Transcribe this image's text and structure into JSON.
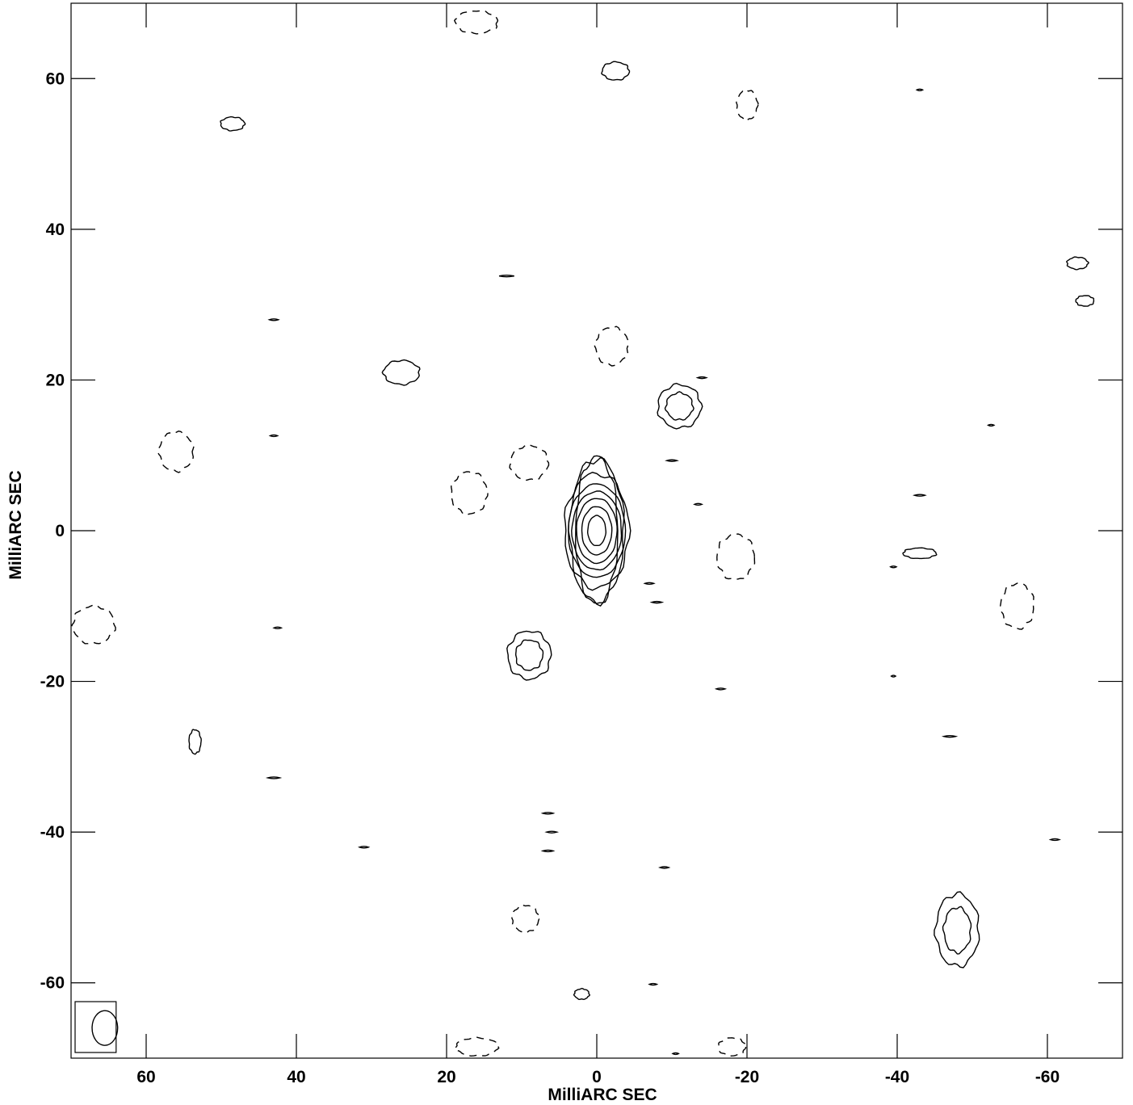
{
  "chart_data": {
    "type": "contour",
    "xlabel": "MilliARC SEC",
    "ylabel": "MilliARC SEC",
    "xlim": [
      70,
      -70
    ],
    "ylim": [
      -70,
      70
    ],
    "x_ticks": [
      60,
      40,
      20,
      0,
      -20,
      -40,
      -60
    ],
    "y_ticks": [
      60,
      40,
      20,
      0,
      -20,
      -40,
      -60
    ],
    "x_tick_labels": [
      "60",
      "40",
      "20",
      "0",
      "-20",
      "-40",
      "-60"
    ],
    "y_tick_labels": [
      "60",
      "40",
      "20",
      "0",
      "-20",
      "-40",
      "-60"
    ],
    "grid": false,
    "core": {
      "x": 0,
      "y": 0,
      "levels": [
        {
          "rx": 1.2,
          "ry": 2.0
        },
        {
          "rx": 2.0,
          "ry": 3.2
        },
        {
          "rx": 2.7,
          "ry": 4.3
        },
        {
          "rx": 3.3,
          "ry": 5.2
        },
        {
          "rx": 3.8,
          "ry": 6.2
        },
        {
          "rx": 4.3,
          "ry": 7.6
        },
        {
          "rx": 3.6,
          "ry": 9.5
        },
        {
          "rx": 2.8,
          "ry": 9.8
        }
      ]
    },
    "features": [
      {
        "x": -11,
        "y": 16.5,
        "rx": 1.8,
        "ry": 1.8,
        "levels": 2,
        "kind": "solid"
      },
      {
        "x": 9,
        "y": -16.5,
        "rx": 1.8,
        "ry": 2.0,
        "levels": 2,
        "kind": "solid"
      },
      {
        "x": -48,
        "y": -53,
        "rx": 1.8,
        "ry": 3.0,
        "levels": 2,
        "kind": "solid"
      },
      {
        "x": -2.5,
        "y": 61,
        "rx": 1.8,
        "ry": 1.2,
        "levels": 1,
        "kind": "solid"
      },
      {
        "x": 48.5,
        "y": 54,
        "rx": 1.6,
        "ry": 0.9,
        "levels": 1,
        "kind": "solid"
      },
      {
        "x": 26,
        "y": 21,
        "rx": 2.4,
        "ry": 1.6,
        "levels": 1,
        "kind": "solid"
      },
      {
        "x": -43,
        "y": -3,
        "rx": 2.2,
        "ry": 0.7,
        "levels": 1,
        "kind": "solid"
      },
      {
        "x": -64,
        "y": 35.5,
        "rx": 1.4,
        "ry": 0.8,
        "levels": 1,
        "kind": "solid"
      },
      {
        "x": -65,
        "y": 30.5,
        "rx": 1.2,
        "ry": 0.7,
        "levels": 1,
        "kind": "solid"
      },
      {
        "x": 2,
        "y": -61.5,
        "rx": 1.0,
        "ry": 0.7,
        "levels": 1,
        "kind": "solid"
      },
      {
        "x": 53.5,
        "y": -28,
        "rx": 0.8,
        "ry": 1.6,
        "levels": 1,
        "kind": "solid"
      },
      {
        "x": -2,
        "y": 24.5,
        "rx": 2.2,
        "ry": 2.5,
        "levels": 1,
        "kind": "dashed"
      },
      {
        "x": 9,
        "y": 9,
        "rx": 2.5,
        "ry": 2.3,
        "levels": 1,
        "kind": "dashed"
      },
      {
        "x": 17,
        "y": 5,
        "rx": 2.4,
        "ry": 2.8,
        "levels": 1,
        "kind": "dashed"
      },
      {
        "x": 56,
        "y": 10.5,
        "rx": 2.3,
        "ry": 2.6,
        "levels": 1,
        "kind": "dashed"
      },
      {
        "x": -18.5,
        "y": -3.5,
        "rx": 2.5,
        "ry": 3.0,
        "levels": 1,
        "kind": "dashed"
      },
      {
        "x": -20,
        "y": 56.5,
        "rx": 1.4,
        "ry": 2.0,
        "levels": 1,
        "kind": "dashed"
      },
      {
        "x": -56,
        "y": -10,
        "rx": 2.2,
        "ry": 3.0,
        "levels": 1,
        "kind": "dashed"
      },
      {
        "x": 67,
        "y": -12.5,
        "rx": 2.8,
        "ry": 2.5,
        "levels": 1,
        "kind": "dashed"
      },
      {
        "x": 9.5,
        "y": -51.5,
        "rx": 1.8,
        "ry": 1.8,
        "levels": 1,
        "kind": "dashed"
      },
      {
        "x": 16,
        "y": 67.5,
        "rx": 2.8,
        "ry": 1.5,
        "levels": 1,
        "kind": "dashed"
      },
      {
        "x": 16,
        "y": -68.5,
        "rx": 2.8,
        "ry": 1.2,
        "levels": 1,
        "kind": "dashed"
      },
      {
        "x": -18,
        "y": -68.5,
        "rx": 1.8,
        "ry": 1.2,
        "levels": 1,
        "kind": "dashed"
      }
    ],
    "dashes": [
      {
        "x": 12,
        "y": 33.8,
        "w": 1.0
      },
      {
        "x": 43,
        "y": 12.6,
        "w": 0.5
      },
      {
        "x": 42.5,
        "y": -12.9,
        "w": 0.5
      },
      {
        "x": 43,
        "y": -32.8,
        "w": 0.8
      },
      {
        "x": -10,
        "y": 9.3,
        "w": 0.7
      },
      {
        "x": -13.5,
        "y": 3.5,
        "w": 0.5
      },
      {
        "x": -14,
        "y": 20.3,
        "w": 0.6
      },
      {
        "x": -43,
        "y": 58.5,
        "w": 0.4
      },
      {
        "x": -52.5,
        "y": 14,
        "w": 0.4
      },
      {
        "x": -43,
        "y": 4.7,
        "w": 0.7
      },
      {
        "x": -39.5,
        "y": -4.8,
        "w": 0.4
      },
      {
        "x": -16.5,
        "y": -21,
        "w": 0.6
      },
      {
        "x": -47,
        "y": -27.3,
        "w": 0.8
      },
      {
        "x": -61,
        "y": -41,
        "w": 0.6
      },
      {
        "x": -39.5,
        "y": -19.3,
        "w": 0.3
      },
      {
        "x": -9,
        "y": -44.7,
        "w": 0.6
      },
      {
        "x": -7.5,
        "y": -60.2,
        "w": 0.5
      },
      {
        "x": 31,
        "y": -42,
        "w": 0.6
      },
      {
        "x": -10.5,
        "y": -69.4,
        "w": 0.4
      },
      {
        "x": 43,
        "y": 28,
        "w": 0.6
      },
      {
        "x": 6.5,
        "y": -37.5,
        "w": 0.7
      },
      {
        "x": 6.0,
        "y": -40.0,
        "w": 0.7
      },
      {
        "x": 6.5,
        "y": -42.5,
        "w": 0.7
      },
      {
        "x": -7,
        "y": -7,
        "w": 0.6
      },
      {
        "x": -8,
        "y": -9.5,
        "w": 0.7
      }
    ],
    "beam": {
      "x": 65.5,
      "y": -66,
      "rx": 1.7,
      "ry": 2.3,
      "box": [
        64,
        -62.5
      ]
    }
  }
}
